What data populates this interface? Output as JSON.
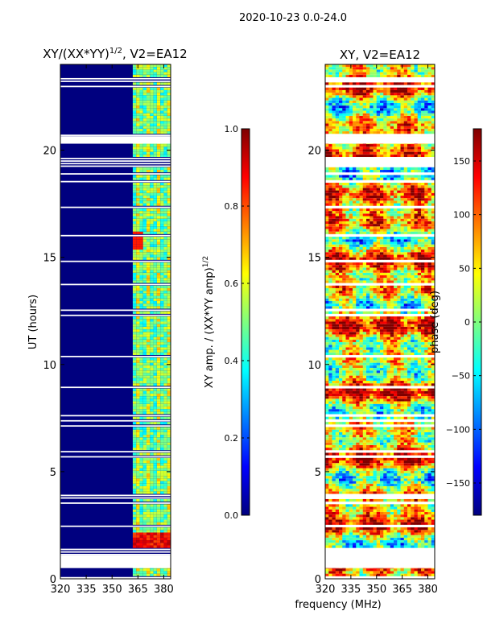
{
  "suptitle": "2020-10-23 0.0-24.0",
  "xlabel_shared": "frequency (MHz)",
  "colors": {
    "jet": [
      "#00007f",
      "#0000ff",
      "#007fff",
      "#00ffff",
      "#7fff7f",
      "#ffff00",
      "#ff7f00",
      "#ff0000",
      "#7f0000"
    ],
    "gap": "#ffffff",
    "frame": "#000000"
  },
  "chart_data": [
    {
      "type": "heatmap",
      "title_main": "XY/(XX*YY)",
      "title_sup": "1/2",
      "title_tail": ", V2=EA12",
      "xlabel": "",
      "ylabel": "UT (hours)",
      "xlim": [
        320,
        384
      ],
      "ylim": [
        0,
        24
      ],
      "xticks": [
        320,
        335,
        350,
        365,
        380
      ],
      "xtick_labels": [
        "320",
        "335",
        "350",
        "365",
        "380"
      ],
      "yticks": [
        0,
        5,
        10,
        15,
        20
      ],
      "ytick_labels": [
        "0",
        "5",
        "10",
        "15",
        "20"
      ],
      "colorbar": {
        "label_main": "XY amp. / (XX*YY amp)",
        "label_sup": "1/2",
        "range": [
          0.0,
          1.0
        ],
        "ticks": [
          0.0,
          0.2,
          0.4,
          0.6,
          0.8,
          1.0
        ],
        "tick_labels": [
          "0.0",
          "0.2",
          "0.4",
          "0.6",
          "0.8",
          "1.0"
        ]
      }
    },
    {
      "type": "heatmap",
      "title_main": "XY, V2=EA12",
      "xlabel": "frequency (MHz)",
      "ylabel": "",
      "xlim": [
        320,
        384
      ],
      "ylim": [
        0,
        24
      ],
      "xticks": [
        320,
        335,
        350,
        365,
        380
      ],
      "xtick_labels": [
        "320",
        "335",
        "350",
        "365",
        "380"
      ],
      "yticks": [
        0,
        5,
        10,
        15,
        20
      ],
      "ytick_labels": [
        "0",
        "5",
        "10",
        "15",
        "20"
      ],
      "colorbar": {
        "label_main": "phase (deg)",
        "range": [
          -180,
          180
        ],
        "ticks": [
          -150,
          -100,
          -50,
          0,
          50,
          100,
          150
        ],
        "tick_labels": [
          "−150",
          "−100",
          "−50",
          "0",
          "50",
          "100",
          "150"
        ]
      }
    }
  ]
}
